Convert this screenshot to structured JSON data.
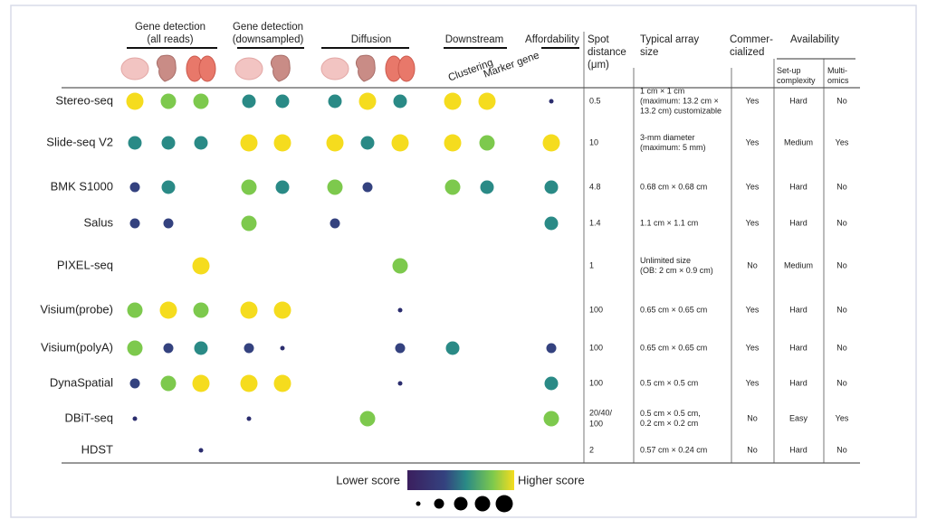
{
  "header_groups": [
    {
      "lines": [
        "Gene detection",
        "(all reads)"
      ]
    },
    {
      "lines": [
        "Gene detection",
        "(downsampled)"
      ]
    },
    {
      "lines": [
        "Diffusion"
      ]
    },
    {
      "lines": [
        "Downstream"
      ]
    },
    {
      "lines": [
        "Affordability"
      ]
    }
  ],
  "subheaders": [
    "Clustering",
    "Marker gene"
  ],
  "columns": {
    "spot": [
      "Spot",
      "distance",
      "(μm)"
    ],
    "array": [
      "Typical array",
      "size"
    ],
    "commercialized": [
      "Commer-",
      "cialized"
    ],
    "availability": "Availability",
    "setup": [
      "Set-up",
      "complexity"
    ],
    "multi": [
      "Multi-",
      "omics"
    ]
  },
  "rows": [
    {
      "method": "Stereo-seq",
      "scores": [
        5,
        4,
        4,
        3,
        3,
        3,
        5,
        3,
        5,
        5,
        1
      ],
      "spot": [
        "0.5"
      ],
      "array": [
        "1 cm × 1 cm",
        "(maximum: 13.2 cm ×",
        "13.2 cm) customizable"
      ],
      "commercialized": "Yes",
      "setup": "Hard",
      "multi": "No"
    },
    {
      "method": "Slide-seq V2",
      "scores": [
        3,
        3,
        3,
        5,
        5,
        5,
        3,
        5,
        5,
        4,
        5
      ],
      "spot": [
        "10"
      ],
      "array": [
        "3-mm diameter",
        "(maximum: 5 mm)"
      ],
      "commercialized": "Yes",
      "setup": "Medium",
      "multi": "Yes"
    },
    {
      "method": "BMK S1000",
      "scores": [
        2,
        3,
        null,
        4,
        3,
        4,
        2,
        null,
        4,
        3,
        3
      ],
      "spot": [
        "4.8"
      ],
      "array": [
        "0.68 cm × 0.68 cm"
      ],
      "commercialized": "Yes",
      "setup": "Hard",
      "multi": "No"
    },
    {
      "method": "Salus",
      "scores": [
        2,
        2,
        null,
        4,
        null,
        2,
        null,
        null,
        null,
        null,
        3
      ],
      "spot": [
        "1.4"
      ],
      "array": [
        "1.1 cm × 1.1 cm"
      ],
      "commercialized": "Yes",
      "setup": "Hard",
      "multi": "No"
    },
    {
      "method": "PIXEL-seq",
      "scores": [
        null,
        null,
        5,
        null,
        null,
        null,
        null,
        4,
        null,
        null,
        null
      ],
      "spot": [
        "1"
      ],
      "array": [
        "Unlimited size",
        "(OB: 2 cm × 0.9 cm)"
      ],
      "commercialized": "No",
      "setup": "Medium",
      "multi": "No"
    },
    {
      "method": "Visium(probe)",
      "scores": [
        4,
        5,
        4,
        5,
        5,
        null,
        null,
        1,
        null,
        null,
        null
      ],
      "spot": [
        "100"
      ],
      "array": [
        "0.65 cm × 0.65 cm"
      ],
      "commercialized": "Yes",
      "setup": "Hard",
      "multi": "No"
    },
    {
      "method": "Visium(polyA)",
      "scores": [
        4,
        2,
        3,
        2,
        1,
        null,
        null,
        2,
        3,
        null,
        2
      ],
      "spot": [
        "100"
      ],
      "array": [
        "0.65 cm × 0.65 cm"
      ],
      "commercialized": "Yes",
      "setup": "Hard",
      "multi": "No"
    },
    {
      "method": "DynaSpatial",
      "scores": [
        2,
        4,
        5,
        5,
        5,
        null,
        null,
        1,
        null,
        null,
        3
      ],
      "spot": [
        "100"
      ],
      "array": [
        "0.5 cm × 0.5 cm"
      ],
      "commercialized": "Yes",
      "setup": "Hard",
      "multi": "No"
    },
    {
      "method": "DBiT-seq",
      "scores": [
        1,
        null,
        null,
        1,
        null,
        null,
        4,
        null,
        null,
        null,
        4
      ],
      "spot": [
        "20/40/",
        "100"
      ],
      "array": [
        "0.5 cm × 0.5 cm,",
        "0.2 cm × 0.2 cm"
      ],
      "commercialized": "No",
      "setup": "Easy",
      "multi": "Yes"
    },
    {
      "method": "HDST",
      "scores": [
        null,
        null,
        1,
        null,
        null,
        null,
        null,
        null,
        null,
        null,
        null
      ],
      "spot": [
        "2"
      ],
      "array": [
        "0.57 cm × 0.24 cm"
      ],
      "commercialized": "No",
      "setup": "Hard",
      "multi": "No"
    }
  ],
  "legend": {
    "low": "Lower score",
    "high": "Higher score",
    "sizes": [
      1,
      2,
      3,
      4,
      5
    ]
  }
}
